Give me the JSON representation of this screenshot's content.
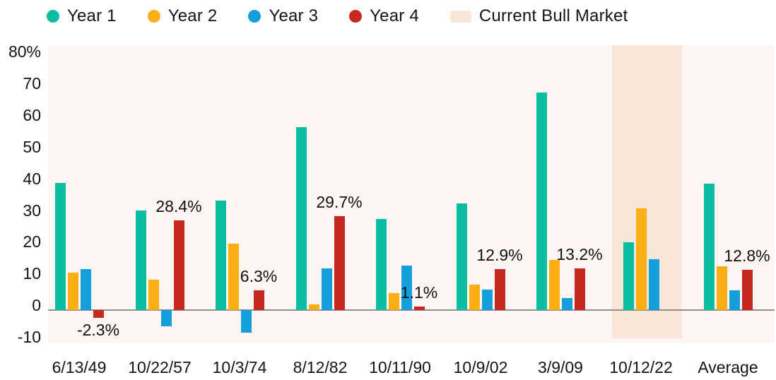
{
  "legend": {
    "items": [
      {
        "label": "Year 1",
        "color": "#0bbda0",
        "shape": "circle"
      },
      {
        "label": "Year 2",
        "color": "#fcae17",
        "shape": "circle"
      },
      {
        "label": "Year 3",
        "color": "#149fdc",
        "shape": "circle"
      },
      {
        "label": "Year 4",
        "color": "#c4281f",
        "shape": "circle"
      },
      {
        "label": "Current Bull Market",
        "color": "#f9e6d9",
        "shape": "rect"
      }
    ]
  },
  "chart_data": {
    "type": "bar",
    "title": "",
    "xlabel": "",
    "ylabel": "",
    "categories": [
      "6/13/49",
      "10/22/57",
      "10/3/74",
      "8/12/82",
      "10/11/90",
      "10/9/02",
      "3/9/09",
      "10/12/22",
      "Average"
    ],
    "series": [
      {
        "name": "Year 1",
        "color": "#0bbda0",
        "values": [
          40.1,
          31.4,
          34.5,
          57.7,
          28.7,
          33.7,
          68.6,
          21.4,
          40.0
        ]
      },
      {
        "name": "Year 2",
        "color": "#fcae17",
        "values": [
          11.9,
          9.6,
          21.0,
          1.8,
          5.5,
          8.0,
          15.8,
          32.1,
          13.9
        ]
      },
      {
        "name": "Year 3",
        "color": "#149fdc",
        "values": [
          13.0,
          -5.1,
          -7.0,
          13.2,
          14.2,
          6.5,
          3.9,
          16.0,
          6.2
        ]
      },
      {
        "name": "Year 4",
        "color": "#c4281f",
        "values": [
          -2.3,
          28.4,
          6.3,
          29.7,
          1.1,
          12.9,
          13.2,
          null,
          12.8
        ]
      }
    ],
    "value_labels": [
      "-2.3%",
      "28.4%",
      "6.3%",
      "29.7%",
      "1.1%",
      "12.9%",
      "13.2%",
      null,
      "12.8%"
    ],
    "y_axis": {
      "ticks": [
        "80%",
        "70",
        "60",
        "50",
        "40",
        "30",
        "20",
        "10",
        "0",
        "-10"
      ],
      "tick_values": [
        80,
        70,
        60,
        50,
        40,
        30,
        20,
        10,
        0,
        -10
      ],
      "range": [
        -10.4,
        83.5
      ]
    },
    "highlight_band": {
      "label": "Current Bull Market",
      "category": "10/12/22",
      "color": "#f9e6d9"
    },
    "grid": false,
    "legend_position": "top",
    "colors": {
      "plot_background": "#fdf6f3",
      "band": "#f9e6d9",
      "axis_line": "#8f8f8f",
      "text": "#141414"
    }
  }
}
